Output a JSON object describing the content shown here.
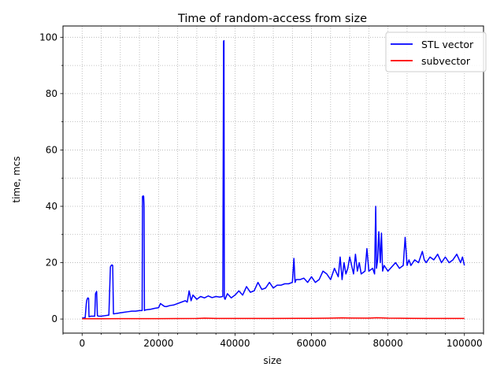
{
  "chart_data": {
    "type": "line",
    "title": "Time of random-access from size",
    "xlabel": "size",
    "ylabel": "time, mcs",
    "xlim": [
      -5000,
      105000
    ],
    "ylim": [
      -5,
      104
    ],
    "xticks": [
      0,
      20000,
      40000,
      60000,
      80000,
      100000
    ],
    "xtick_labels": [
      "0",
      "20000",
      "40000",
      "60000",
      "80000",
      "100000"
    ],
    "yticks": [
      0,
      20,
      40,
      60,
      80,
      100
    ],
    "ytick_labels": [
      "0",
      "20",
      "40",
      "60",
      "80",
      "100"
    ],
    "x_minor_step": 5000,
    "y_minor_step": 10,
    "grid": true,
    "legend_position": "upper-right",
    "series": [
      {
        "name": "STL vector",
        "color": "#0000ff",
        "x": [
          0,
          800,
          1100,
          1200,
          1300,
          1500,
          1700,
          1800,
          2200,
          2400,
          3300,
          3500,
          3800,
          4000,
          4300,
          5000,
          6000,
          7000,
          7400,
          7600,
          7800,
          8000,
          8200,
          9000,
          10000,
          11000,
          12000,
          13000,
          14000,
          15000,
          15700,
          15800,
          16000,
          16100,
          16200,
          16300,
          16500,
          17000,
          18000,
          19000,
          20000,
          20500,
          21000,
          21500,
          22000,
          23000,
          24000,
          25000,
          26000,
          27000,
          27500,
          28000,
          28500,
          29000,
          30000,
          31000,
          32000,
          33000,
          34000,
          35000,
          36000,
          36800,
          37000,
          37100,
          37200,
          37400,
          38000,
          39000,
          40000,
          41000,
          42000,
          43000,
          44000,
          45000,
          46000,
          47000,
          48000,
          49000,
          50000,
          51000,
          52000,
          53000,
          54000,
          55000,
          55400,
          55700,
          56000,
          57000,
          58000,
          59000,
          60000,
          61000,
          62000,
          63000,
          64000,
          65000,
          66000,
          67000,
          67500,
          68000,
          68500,
          69000,
          69500,
          70000,
          71000,
          71500,
          72000,
          72500,
          73000,
          74000,
          74500,
          75000,
          76000,
          76500,
          76800,
          77000,
          77300,
          77600,
          78000,
          78300,
          78600,
          79000,
          80000,
          81000,
          82000,
          83000,
          84000,
          84500,
          85000,
          85500,
          86000,
          87000,
          88000,
          89000,
          89500,
          90000,
          91000,
          92000,
          93000,
          94000,
          95000,
          96000,
          97000,
          98000,
          99000,
          99500,
          100000
        ],
        "y": [
          0.3,
          0.5,
          5.5,
          6.5,
          7,
          7.5,
          7.3,
          0.8,
          1.0,
          1.0,
          1.0,
          9.0,
          9.8,
          1.2,
          1.0,
          1.0,
          1.2,
          1.4,
          18.5,
          19,
          19.2,
          19,
          1.8,
          2.0,
          2.2,
          2.4,
          2.6,
          2.8,
          2.8,
          3.0,
          3.0,
          43.5,
          43.7,
          43.5,
          40,
          3.0,
          3.2,
          3.3,
          3.5,
          3.8,
          4.0,
          5.5,
          5.0,
          4.5,
          4.4,
          4.8,
          5.0,
          5.5,
          6.0,
          6.5,
          6.0,
          10,
          6.5,
          8.5,
          7.0,
          8.0,
          7.5,
          8.2,
          7.6,
          8.0,
          7.8,
          8.0,
          98.5,
          98.8,
          7.5,
          7.0,
          9.0,
          7.5,
          8.5,
          10,
          8.5,
          11.5,
          9.5,
          10,
          13,
          10.5,
          11,
          13,
          11,
          12,
          12,
          12.5,
          12.5,
          13,
          21.5,
          13,
          14,
          14,
          14.5,
          13,
          15,
          13,
          14,
          17,
          16,
          14,
          18,
          15,
          22,
          14,
          20,
          16,
          18,
          22,
          16,
          23,
          17,
          20,
          16,
          17,
          25,
          17,
          18,
          16,
          40,
          18,
          21,
          31,
          20,
          30.5,
          17,
          19,
          17,
          18.5,
          20,
          18,
          19,
          29,
          19,
          21,
          19,
          21,
          20,
          24,
          21,
          20,
          22,
          21,
          23,
          20,
          22,
          20,
          21,
          23,
          20,
          22,
          19
        ]
      },
      {
        "name": "subvector",
        "color": "#ff0000",
        "x": [
          0,
          5000,
          10000,
          20000,
          30000,
          32000,
          35000,
          40000,
          50000,
          60000,
          65000,
          68000,
          70000,
          75000,
          77000,
          78000,
          80000,
          85000,
          90000,
          95000,
          100000
        ],
        "y": [
          0.1,
          0.1,
          0.15,
          0.15,
          0.2,
          0.3,
          0.2,
          0.2,
          0.2,
          0.25,
          0.3,
          0.4,
          0.35,
          0.3,
          0.45,
          0.4,
          0.3,
          0.25,
          0.2,
          0.2,
          0.2
        ]
      }
    ]
  }
}
